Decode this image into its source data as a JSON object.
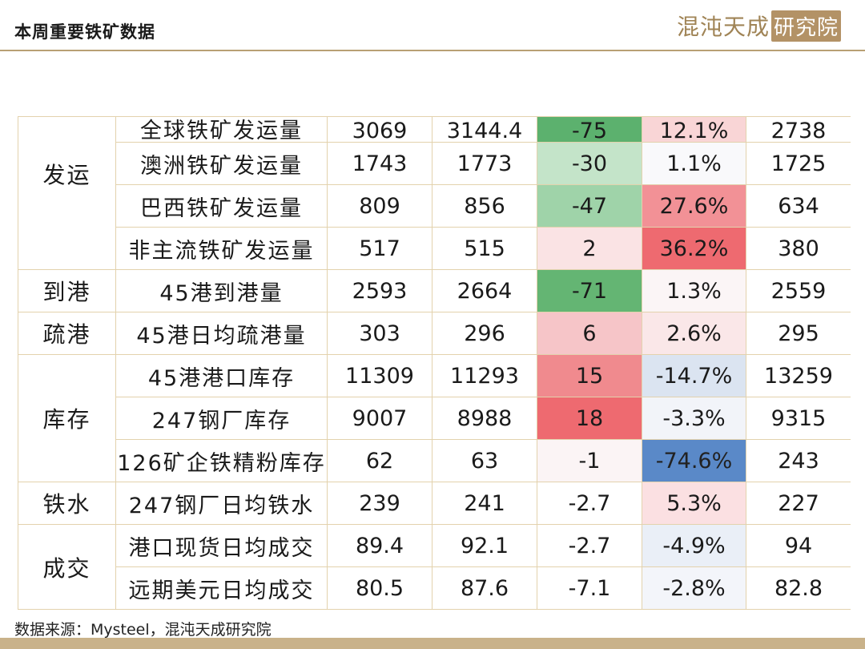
{
  "page": {
    "title": "本周重要铁矿数据",
    "logo_text": "混沌天成",
    "logo_seal": "研究院",
    "source_note": "数据来源：Mysteel，混沌天成研究院"
  },
  "table": {
    "categories": {
      "shipping": "发运",
      "arrival": "到港",
      "port_clearance": "疏港",
      "inventory": "库存",
      "hot_metal": "铁水",
      "transaction": "成交"
    },
    "rows": [
      {
        "metric": "全球铁矿发运量",
        "a": "3069",
        "b": "3144.4",
        "c": "-75",
        "d": "12.1%",
        "e": "2738",
        "c_color": "#5cb16e",
        "d_color": "#f9d5d6"
      },
      {
        "metric": "澳洲铁矿发运量",
        "a": "1743",
        "b": "1773",
        "c": "-30",
        "d": "1.1%",
        "e": "1725",
        "c_color": "#c4e4c9",
        "d_color": "#f9f9fb"
      },
      {
        "metric": "巴西铁矿发运量",
        "a": "809",
        "b": "856",
        "c": "-47",
        "d": "27.6%",
        "e": "634",
        "c_color": "#9fd3a9",
        "d_color": "#f29196"
      },
      {
        "metric": "非主流铁矿发运量",
        "a": "517",
        "b": "515",
        "c": "2",
        "d": "36.2%",
        "e": "380",
        "c_color": "#fae3e4",
        "d_color": "#ee6a70"
      },
      {
        "metric": "45港到港量",
        "a": "2593",
        "b": "2664",
        "c": "-71",
        "d": "1.3%",
        "e": "2559",
        "c_color": "#64b573",
        "d_color": "#fbf5f6"
      },
      {
        "metric": "45港日均疏港量",
        "a": "303",
        "b": "296",
        "c": "6",
        "d": "2.6%",
        "e": "295",
        "c_color": "#f6c5c8",
        "d_color": "#fae7e8"
      },
      {
        "metric": "45港港口库存",
        "a": "11309",
        "b": "11293",
        "c": "15",
        "d": "-14.7%",
        "e": "13259",
        "c_color": "#f08a8e",
        "d_color": "#dbe4f1"
      },
      {
        "metric": "247钢厂库存",
        "a": "9007",
        "b": "8988",
        "c": "18",
        "d": "-3.3%",
        "e": "9315",
        "c_color": "#ee6a70",
        "d_color": "#f2f4f9"
      },
      {
        "metric": "126矿企铁精粉库存",
        "a": "62",
        "b": "63",
        "c": "-1",
        "d": "-74.6%",
        "e": "243",
        "c_color": "#fbf4f5",
        "d_color": "#5a89c8"
      },
      {
        "metric": "247钢厂日均铁水",
        "a": "239",
        "b": "241",
        "c": "-2.7",
        "d": "5.3%",
        "e": "227",
        "c_color": "#ffffff",
        "d_color": "#fbe0e2"
      },
      {
        "metric": "港口现货日均成交",
        "a": "89.4",
        "b": "92.1",
        "c": "-2.7",
        "d": "-4.9%",
        "e": "94",
        "c_color": "#ffffff",
        "d_color": "#eaeff7"
      },
      {
        "metric": "远期美元日均成交",
        "a": "80.5",
        "b": "87.6",
        "c": "-7.1",
        "d": "-2.8%",
        "e": "82.8",
        "c_color": "#ffffff",
        "d_color": "#f3f5fa"
      }
    ]
  }
}
